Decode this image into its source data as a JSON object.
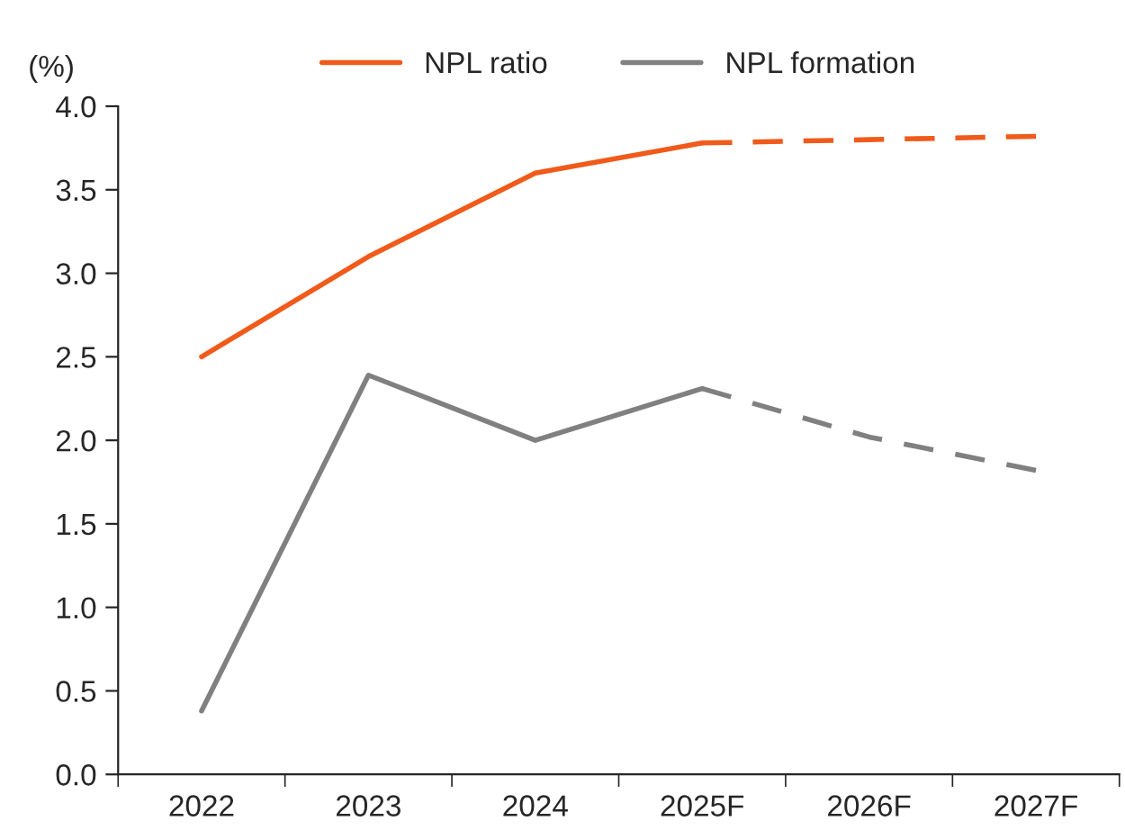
{
  "chart_data": {
    "type": "line",
    "ylabel": "(%)",
    "categories": [
      "2022",
      "2023",
      "2024",
      "2025F",
      "2026F",
      "2027F"
    ],
    "series": [
      {
        "name": "NPL ratio",
        "color": "#f05a1a",
        "line_style": "solid",
        "values": [
          2.5,
          3.1,
          3.6,
          3.78,
          null,
          null
        ]
      },
      {
        "color": "#f05a1a",
        "line_style": "dashed",
        "values": [
          null,
          null,
          null,
          3.78,
          3.8,
          3.82
        ]
      },
      {
        "name": "NPL formation",
        "color": "#808080",
        "line_style": "solid",
        "values": [
          0.38,
          2.39,
          2.0,
          2.31,
          null,
          null
        ]
      },
      {
        "color": "#808080",
        "line_style": "dashed",
        "values": [
          null,
          null,
          null,
          2.31,
          2.02,
          1.82
        ]
      }
    ],
    "ylim": [
      0,
      4
    ],
    "yticks": [
      {
        "value": 0,
        "label": "0.0"
      },
      {
        "value": 0.5,
        "label": "0.5"
      },
      {
        "value": 1,
        "label": "1.0"
      },
      {
        "value": 1.5,
        "label": "1.5"
      },
      {
        "value": 2,
        "label": "2.0"
      },
      {
        "value": 2.5,
        "label": "2.5"
      },
      {
        "value": 3,
        "label": "3.0"
      },
      {
        "value": 3.5,
        "label": "3.5"
      },
      {
        "value": 4,
        "label": "4.0"
      }
    ],
    "grid": false,
    "legend": "top",
    "marker": "none"
  }
}
